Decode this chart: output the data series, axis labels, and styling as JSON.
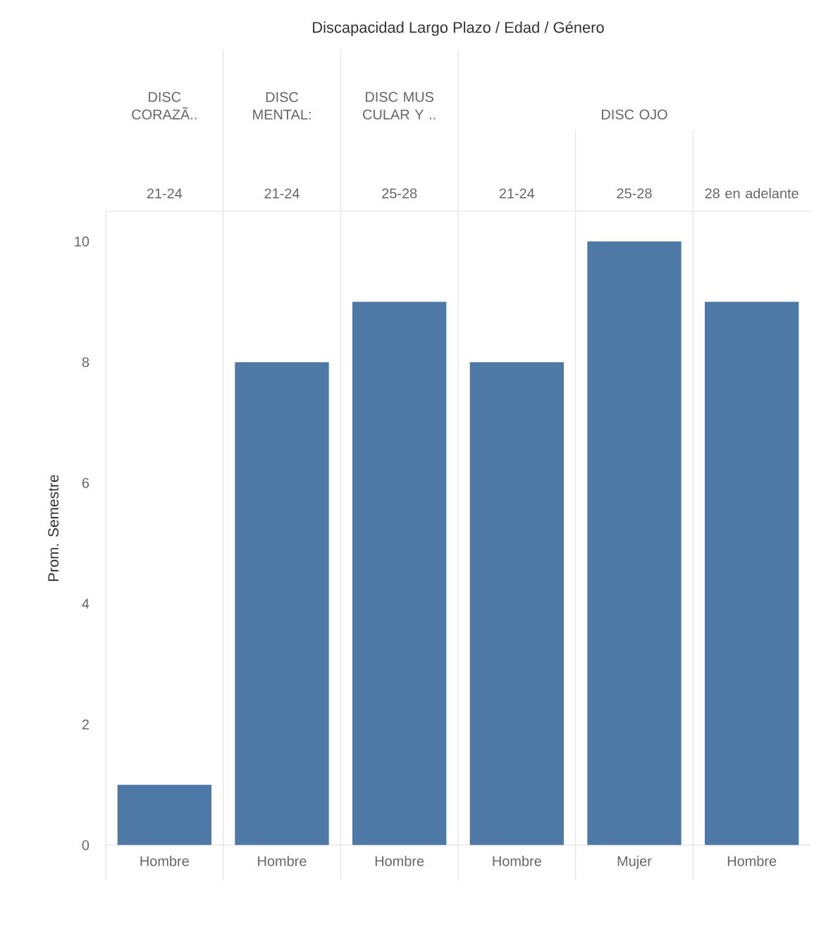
{
  "chart_data": {
    "type": "bar",
    "title": "Discapacidad  Largo Plazo / Edad / Género",
    "ylabel": "Prom. Semestre",
    "categories": [
      "Hombre",
      "Hombre",
      "Hombre",
      "Hombre",
      "Mujer",
      "Hombre"
    ],
    "values": [
      1,
      8,
      9,
      8,
      10,
      9
    ],
    "color": "#4e79a7",
    "ylim": [
      0,
      10.5
    ],
    "yticks": [
      0,
      2,
      4,
      6,
      8,
      10
    ],
    "annotations": [
      "DISC CORAZÃ..",
      "DISC MENTAL:",
      "DISC MUS CULAR Y ..",
      "DISC OJO",
      "21-24",
      "21-24",
      "25-28",
      "21-24",
      "25-28",
      "28 en adelante"
    ]
  }
}
